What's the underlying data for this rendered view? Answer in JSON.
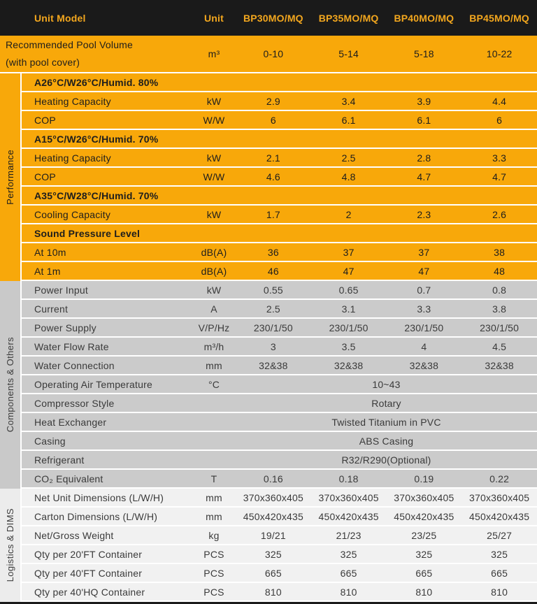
{
  "colors": {
    "accent_orange": "#F8A80A",
    "header_bg": "#1A1A1A",
    "header_text": "#F3A71E",
    "gray_section_bg": "#CBCBCB",
    "light_section_bg": "#F1F1F1",
    "separator": "#FFFFFF",
    "dark_text": "#1D1D1D",
    "gray_text": "#3A3A3A"
  },
  "header": {
    "unit_model_label": "Unit Model",
    "unit_label": "Unit",
    "models": [
      "BP30MO/MQ",
      "BP35MO/MQ",
      "BP40MO/MQ",
      "BP45MO/MQ"
    ]
  },
  "pool_volume": {
    "label_line1": "Recommended Pool Volume",
    "label_line2": "(with pool cover)",
    "unit": "m³",
    "values": [
      "0-10",
      "5-14",
      "5-18",
      "10-22"
    ]
  },
  "sections": [
    {
      "id": "performance",
      "label": "Performance",
      "rows": [
        {
          "type": "subheader",
          "label": "A26°C/W26°C/Humid. 80%"
        },
        {
          "type": "data",
          "label": "Heating Capacity",
          "unit": "kW",
          "values": [
            "2.9",
            "3.4",
            "3.9",
            "4.4"
          ]
        },
        {
          "type": "data",
          "label": "COP",
          "unit": "W/W",
          "values": [
            "6",
            "6.1",
            "6.1",
            "6"
          ]
        },
        {
          "type": "subheader",
          "label": "A15°C/W26°C/Humid. 70%"
        },
        {
          "type": "data",
          "label": "Heating Capacity",
          "unit": "kW",
          "values": [
            "2.1",
            "2.5",
            "2.8",
            "3.3"
          ]
        },
        {
          "type": "data",
          "label": "COP",
          "unit": "W/W",
          "values": [
            "4.6",
            "4.8",
            "4.7",
            "4.7"
          ]
        },
        {
          "type": "subheader",
          "label": "A35°C/W28°C/Humid. 70%"
        },
        {
          "type": "data",
          "label": "Cooling Capacity",
          "unit": "kW",
          "values": [
            "1.7",
            "2",
            "2.3",
            "2.6"
          ]
        },
        {
          "type": "subheader",
          "label": "Sound Pressure Level"
        },
        {
          "type": "data",
          "label": "At 10m",
          "unit": "dB(A)",
          "values": [
            "36",
            "37",
            "37",
            "38"
          ]
        },
        {
          "type": "data",
          "label": "At 1m",
          "unit": "dB(A)",
          "values": [
            "46",
            "47",
            "47",
            "48"
          ]
        }
      ]
    },
    {
      "id": "components",
      "label": "Components & Others",
      "rows": [
        {
          "type": "data",
          "label": "Power Input",
          "unit": "kW",
          "values": [
            "0.55",
            "0.65",
            "0.7",
            "0.8"
          ]
        },
        {
          "type": "data",
          "label": "Current",
          "unit": "A",
          "values": [
            "2.5",
            "3.1",
            "3.3",
            "3.8"
          ]
        },
        {
          "type": "data",
          "label": "Power Supply",
          "unit": "V/P/Hz",
          "values": [
            "230/1/50",
            "230/1/50",
            "230/1/50",
            "230/1/50"
          ]
        },
        {
          "type": "data",
          "label": "Water Flow Rate",
          "unit": "m³/h",
          "values": [
            "3",
            "3.5",
            "4",
            "4.5"
          ]
        },
        {
          "type": "data",
          "label": "Water Connection",
          "unit": "mm",
          "values": [
            "32&38",
            "32&38",
            "32&38",
            "32&38"
          ]
        },
        {
          "type": "span",
          "label": "Operating Air Temperature",
          "unit": "°C",
          "value": "10~43"
        },
        {
          "type": "span",
          "label": "Compressor Style",
          "unit": "",
          "value": "Rotary"
        },
        {
          "type": "span",
          "label": "Heat Exchanger",
          "unit": "",
          "value": "Twisted Titanium in PVC"
        },
        {
          "type": "span",
          "label": "Casing",
          "unit": "",
          "value": "ABS Casing"
        },
        {
          "type": "span",
          "label": "Refrigerant",
          "unit": "",
          "value": "R32/R290(Optional)"
        },
        {
          "type": "data",
          "label": "CO₂ Equivalent",
          "unit": "T",
          "values": [
            "0.16",
            "0.18",
            "0.19",
            "0.22"
          ]
        }
      ]
    },
    {
      "id": "logistics",
      "label": "Logistics & DIMS",
      "rows": [
        {
          "type": "data",
          "label": "Net Unit Dimensions (L/W/H)",
          "unit": "mm",
          "values": [
            "370x360x405",
            "370x360x405",
            "370x360x405",
            "370x360x405"
          ]
        },
        {
          "type": "data",
          "label": "Carton Dimensions (L/W/H)",
          "unit": "mm",
          "values": [
            "450x420x435",
            "450x420x435",
            "450x420x435",
            "450x420x435"
          ]
        },
        {
          "type": "data",
          "label": "Net/Gross Weight",
          "unit": "kg",
          "values": [
            "19/21",
            "21/23",
            "23/25",
            "25/27"
          ]
        },
        {
          "type": "data",
          "label": "Qty per 20'FT Container",
          "unit": "PCS",
          "values": [
            "325",
            "325",
            "325",
            "325"
          ]
        },
        {
          "type": "data",
          "label": "Qty per 40'FT Container",
          "unit": "PCS",
          "values": [
            "665",
            "665",
            "665",
            "665"
          ]
        },
        {
          "type": "data",
          "label": "Qty per 40'HQ Container",
          "unit": "PCS",
          "values": [
            "810",
            "810",
            "810",
            "810"
          ]
        }
      ]
    }
  ]
}
